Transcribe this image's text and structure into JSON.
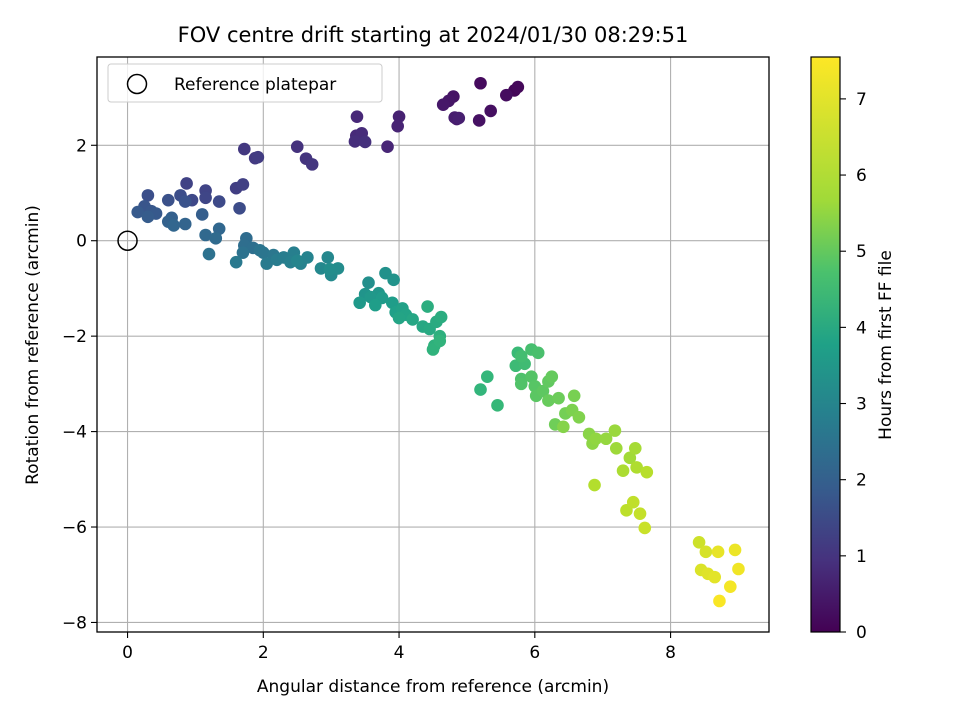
{
  "chart_data": {
    "type": "scatter",
    "title": "FOV centre drift starting at 2024/01/30 08:29:51",
    "xlabel": "Angular distance from reference (arcmin)",
    "ylabel": "Rotation from reference (arcmin)",
    "xlim": [
      -0.45,
      9.45
    ],
    "ylim": [
      -8.2,
      3.85
    ],
    "xticks": [
      0,
      2,
      4,
      6,
      8
    ],
    "yticks": [
      -8,
      -6,
      -4,
      -2,
      0,
      2
    ],
    "grid": true,
    "legend": {
      "label": "Reference platepar",
      "position": "top-left",
      "marker": "hollow-circle"
    },
    "reference_point": {
      "x": 0,
      "y": 0
    },
    "colorbar": {
      "label": "Hours from first FF file",
      "colormap": "viridis",
      "range": [
        0,
        7.55
      ],
      "ticks": [
        0,
        1,
        2,
        3,
        4,
        5,
        6,
        7
      ]
    },
    "points": [
      [
        5.7,
        3.15,
        0.1
      ],
      [
        5.75,
        3.22,
        0.15
      ],
      [
        5.2,
        3.3,
        0.2
      ],
      [
        5.58,
        3.05,
        0.25
      ],
      [
        5.35,
        2.72,
        0.3
      ],
      [
        5.18,
        2.52,
        0.35
      ],
      [
        4.8,
        3.02,
        0.4
      ],
      [
        4.73,
        2.93,
        0.45
      ],
      [
        4.65,
        2.85,
        0.5
      ],
      [
        4.85,
        2.55,
        0.55
      ],
      [
        4.82,
        2.58,
        0.6
      ],
      [
        4.88,
        2.57,
        0.65
      ],
      [
        4.0,
        2.6,
        0.7
      ],
      [
        3.98,
        2.4,
        0.75
      ],
      [
        3.83,
        1.97,
        0.8
      ],
      [
        3.38,
        2.6,
        0.85
      ],
      [
        3.37,
        2.2,
        0.9
      ],
      [
        3.45,
        2.25,
        0.95
      ],
      [
        3.35,
        2.08,
        1.0
      ],
      [
        3.5,
        2.07,
        1.05
      ],
      [
        2.5,
        1.97,
        1.1
      ],
      [
        2.63,
        1.72,
        1.15
      ],
      [
        2.72,
        1.6,
        1.2
      ],
      [
        1.72,
        1.92,
        1.25
      ],
      [
        1.88,
        1.73,
        1.3
      ],
      [
        1.92,
        1.75,
        1.35
      ],
      [
        1.6,
        1.1,
        1.4
      ],
      [
        1.7,
        1.18,
        1.45
      ],
      [
        0.87,
        1.2,
        1.5
      ],
      [
        1.15,
        1.05,
        1.55
      ],
      [
        1.15,
        0.9,
        1.6
      ],
      [
        0.95,
        0.85,
        1.65
      ],
      [
        1.35,
        0.82,
        1.7
      ],
      [
        1.65,
        0.68,
        1.75
      ],
      [
        0.78,
        0.95,
        1.8
      ],
      [
        0.3,
        0.95,
        1.85
      ],
      [
        0.6,
        0.85,
        1.9
      ],
      [
        0.85,
        0.82,
        1.95
      ],
      [
        0.25,
        0.72,
        2.0
      ],
      [
        0.35,
        0.62,
        2.05
      ],
      [
        0.42,
        0.57,
        2.1
      ],
      [
        0.15,
        0.6,
        2.15
      ],
      [
        0.3,
        0.5,
        2.2
      ],
      [
        1.1,
        0.55,
        2.25
      ],
      [
        0.65,
        0.48,
        2.3
      ],
      [
        0.6,
        0.4,
        2.35
      ],
      [
        0.85,
        0.35,
        2.4
      ],
      [
        0.68,
        0.32,
        2.45
      ],
      [
        1.35,
        0.25,
        2.5
      ],
      [
        1.15,
        0.12,
        2.55
      ],
      [
        1.3,
        0.05,
        2.6
      ],
      [
        1.75,
        0.05,
        2.65
      ],
      [
        1.72,
        -0.1,
        2.7
      ],
      [
        1.85,
        -0.15,
        2.75
      ],
      [
        1.2,
        -0.28,
        2.8
      ],
      [
        1.7,
        -0.25,
        2.85
      ],
      [
        1.95,
        -0.2,
        2.9
      ],
      [
        2.0,
        -0.25,
        2.95
      ],
      [
        2.15,
        -0.3,
        3.0
      ],
      [
        1.6,
        -0.45,
        3.05
      ],
      [
        2.05,
        -0.48,
        3.1
      ],
      [
        2.2,
        -0.4,
        3.15
      ],
      [
        2.3,
        -0.35,
        3.2
      ],
      [
        2.45,
        -0.25,
        3.25
      ],
      [
        2.4,
        -0.45,
        3.3
      ],
      [
        2.55,
        -0.48,
        3.35
      ],
      [
        2.65,
        -0.35,
        3.4
      ],
      [
        2.5,
        -0.42,
        3.45
      ],
      [
        2.95,
        -0.35,
        3.5
      ],
      [
        2.85,
        -0.58,
        3.55
      ],
      [
        3.0,
        -0.72,
        3.6
      ],
      [
        3.1,
        -0.58,
        3.65
      ],
      [
        2.98,
        -0.6,
        3.7
      ],
      [
        3.55,
        -0.88,
        3.75
      ],
      [
        3.8,
        -0.68,
        3.8
      ],
      [
        3.92,
        -0.82,
        3.85
      ],
      [
        3.5,
        -1.12,
        3.9
      ],
      [
        3.7,
        -1.1,
        3.95
      ],
      [
        3.58,
        -1.18,
        4.0
      ],
      [
        3.42,
        -1.3,
        4.05
      ],
      [
        3.75,
        -1.2,
        4.1
      ],
      [
        3.9,
        -1.3,
        4.15
      ],
      [
        3.65,
        -1.35,
        4.2
      ],
      [
        3.95,
        -1.5,
        4.25
      ],
      [
        4.05,
        -1.42,
        4.3
      ],
      [
        4.1,
        -1.55,
        4.35
      ],
      [
        4.0,
        -1.62,
        4.4
      ],
      [
        4.2,
        -1.65,
        4.45
      ],
      [
        4.35,
        -1.8,
        4.5
      ],
      [
        4.45,
        -1.85,
        4.55
      ],
      [
        4.55,
        -1.7,
        4.6
      ],
      [
        4.62,
        -1.6,
        4.65
      ],
      [
        4.42,
        -1.38,
        4.7
      ],
      [
        4.6,
        -2.0,
        4.75
      ],
      [
        4.52,
        -2.2,
        4.8
      ],
      [
        4.5,
        -2.28,
        4.85
      ],
      [
        4.6,
        -2.1,
        4.9
      ],
      [
        5.2,
        -3.12,
        4.95
      ],
      [
        5.3,
        -2.85,
        5.0
      ],
      [
        5.45,
        -3.45,
        5.05
      ],
      [
        5.75,
        -2.35,
        5.1
      ],
      [
        5.72,
        -2.62,
        5.15
      ],
      [
        5.85,
        -2.58,
        5.2
      ],
      [
        5.8,
        -2.42,
        5.25
      ],
      [
        5.95,
        -2.28,
        5.3
      ],
      [
        6.05,
        -2.35,
        5.35
      ],
      [
        5.8,
        -2.9,
        5.4
      ],
      [
        5.8,
        -3.0,
        5.45
      ],
      [
        5.95,
        -2.85,
        5.5
      ],
      [
        6.0,
        -3.05,
        5.55
      ],
      [
        6.02,
        -3.25,
        5.6
      ],
      [
        6.12,
        -3.15,
        5.65
      ],
      [
        6.2,
        -2.95,
        5.7
      ],
      [
        6.25,
        -2.85,
        5.75
      ],
      [
        6.2,
        -3.35,
        5.8
      ],
      [
        6.35,
        -3.3,
        5.85
      ],
      [
        6.3,
        -3.85,
        5.9
      ],
      [
        6.45,
        -3.62,
        5.95
      ],
      [
        6.58,
        -3.25,
        6.0
      ],
      [
        6.55,
        -3.55,
        6.05
      ],
      [
        6.65,
        -3.7,
        6.1
      ],
      [
        6.42,
        -3.9,
        6.15
      ],
      [
        6.8,
        -4.05,
        6.2
      ],
      [
        6.85,
        -4.25,
        6.25
      ],
      [
        6.9,
        -4.15,
        6.3
      ],
      [
        7.05,
        -4.15,
        6.35
      ],
      [
        7.18,
        -3.98,
        6.4
      ],
      [
        7.2,
        -4.35,
        6.45
      ],
      [
        7.4,
        -4.55,
        6.5
      ],
      [
        7.48,
        -4.35,
        6.55
      ],
      [
        7.3,
        -4.82,
        6.6
      ],
      [
        7.5,
        -4.75,
        6.65
      ],
      [
        6.88,
        -5.12,
        6.7
      ],
      [
        7.65,
        -4.85,
        6.75
      ],
      [
        7.35,
        -5.65,
        6.8
      ],
      [
        7.45,
        -5.48,
        6.85
      ],
      [
        7.55,
        -5.72,
        6.9
      ],
      [
        7.62,
        -6.02,
        6.95
      ],
      [
        8.42,
        -6.32,
        7.0
      ],
      [
        8.52,
        -6.52,
        7.1
      ],
      [
        8.45,
        -6.9,
        7.15
      ],
      [
        8.55,
        -6.98,
        7.2
      ],
      [
        8.65,
        -7.05,
        7.25
      ],
      [
        8.7,
        -6.52,
        7.3
      ],
      [
        8.95,
        -6.48,
        7.35
      ],
      [
        9.0,
        -6.88,
        7.4
      ],
      [
        8.88,
        -7.25,
        7.45
      ],
      [
        8.72,
        -7.55,
        7.5
      ]
    ]
  },
  "colors": {
    "grid": "#b0b0b0",
    "axes": "#000000",
    "reference_marker": "#000000"
  }
}
